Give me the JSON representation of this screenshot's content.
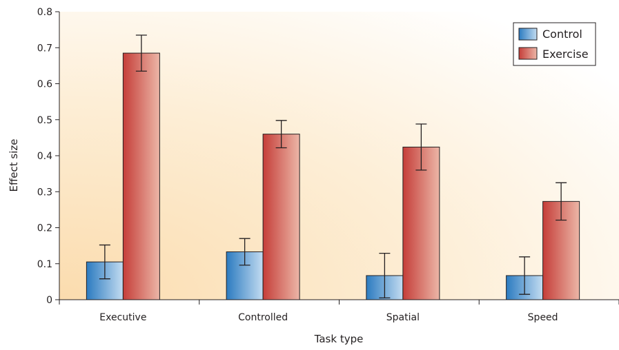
{
  "chart_data": {
    "type": "bar",
    "title": "",
    "xlabel": "Task type",
    "ylabel": "Effect size",
    "ylim": [
      0,
      0.8
    ],
    "yticks": [
      "0",
      "0.1",
      "0.2",
      "0.3",
      "0.4",
      "0.5",
      "0.6",
      "0.7",
      "0.8"
    ],
    "categories": [
      "Executive",
      "Controlled",
      "Spatial",
      "Speed"
    ],
    "series": [
      {
        "name": "Control",
        "values": [
          0.105,
          0.133,
          0.067,
          0.067
        ],
        "error": [
          0.047,
          0.037,
          0.062,
          0.052
        ]
      },
      {
        "name": "Exercise",
        "values": [
          0.685,
          0.46,
          0.424,
          0.273
        ],
        "error": [
          0.05,
          0.038,
          0.064,
          0.052
        ]
      }
    ],
    "legend_position": "top-right",
    "grid": false,
    "colors": {
      "control_dark": "#2f7fc4",
      "control_light": "#bcd8f0",
      "exercise_dark": "#c8403a",
      "exercise_light": "#eab1a3",
      "background_warm": "#fce3bd"
    }
  }
}
